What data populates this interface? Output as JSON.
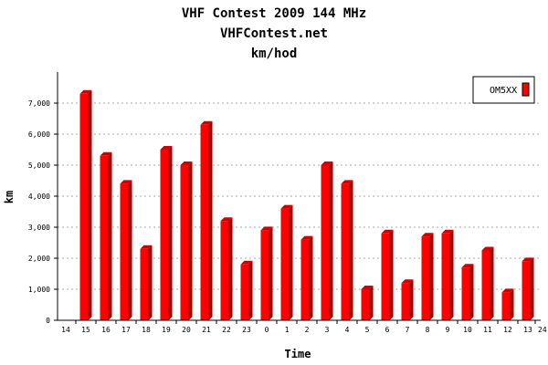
{
  "chart_data": {
    "type": "bar",
    "title": "VHF Contest 2009 144 MHz",
    "subtitle": "VHFContest.net",
    "subtitle2": "km/hod",
    "xlabel": "Time",
    "ylabel": "km",
    "ylim": [
      0,
      8000
    ],
    "yticks": [
      0,
      1000,
      2000,
      3000,
      4000,
      5000,
      6000,
      7000
    ],
    "ytick_labels": [
      "0",
      "1,000",
      "2,000",
      "3,000",
      "4,000",
      "5,000",
      "6,000",
      "7,000"
    ],
    "grid": true,
    "legend_position": "top-right",
    "bar_color": "#ff0000",
    "x_edge_labels": [
      "14",
      "24"
    ],
    "categories": [
      "15",
      "16",
      "17",
      "18",
      "19",
      "20",
      "21",
      "22",
      "23",
      "0",
      "1",
      "2",
      "3",
      "4",
      "5",
      "6",
      "7",
      "8",
      "9",
      "10",
      "11",
      "12",
      "13"
    ],
    "series": [
      {
        "name": "OM5XX",
        "values": [
          7300,
          5300,
          4400,
          2300,
          5500,
          5000,
          6300,
          3200,
          1800,
          2900,
          3600,
          2600,
          5000,
          4400,
          1000,
          2800,
          1200,
          2700,
          2800,
          1700,
          2250,
          900,
          1900
        ]
      }
    ]
  }
}
